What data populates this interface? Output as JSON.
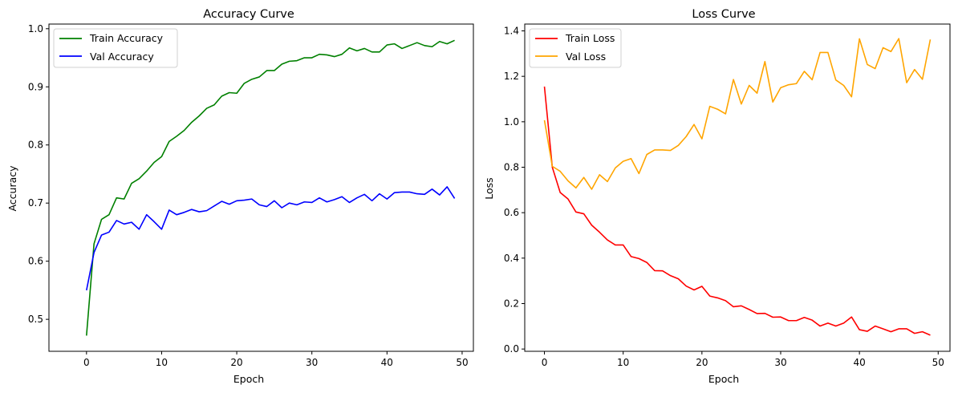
{
  "chart_data": [
    {
      "type": "line",
      "title": "Accuracy Curve",
      "xlabel": "Epoch",
      "ylabel": "Accuracy",
      "xlim": [
        -5,
        51.5
      ],
      "ylim": [
        0.445,
        1.008
      ],
      "xticks": [
        0,
        10,
        20,
        30,
        40,
        50
      ],
      "yticks": [
        0.5,
        0.6,
        0.7,
        0.8,
        0.9,
        1.0
      ],
      "ytick_labels": [
        "0.5",
        "0.6",
        "0.7",
        "0.8",
        "0.9",
        "1.0"
      ],
      "grid": false,
      "legend_position": "top-left",
      "x": [
        0,
        1,
        2,
        3,
        4,
        5,
        6,
        7,
        8,
        9,
        10,
        11,
        12,
        13,
        14,
        15,
        16,
        17,
        18,
        19,
        20,
        21,
        22,
        23,
        24,
        25,
        26,
        27,
        28,
        29,
        30,
        31,
        32,
        33,
        34,
        35,
        36,
        37,
        38,
        39,
        40,
        41,
        42,
        43,
        44,
        45,
        46,
        47,
        48,
        49
      ],
      "series": [
        {
          "name": "Train Accuracy",
          "color": "#008000",
          "values": [
            0.472,
            0.63,
            0.672,
            0.68,
            0.709,
            0.707,
            0.734,
            0.742,
            0.755,
            0.77,
            0.78,
            0.806,
            0.815,
            0.825,
            0.839,
            0.85,
            0.863,
            0.869,
            0.884,
            0.89,
            0.889,
            0.906,
            0.913,
            0.917,
            0.928,
            0.928,
            0.939,
            0.944,
            0.945,
            0.95,
            0.95,
            0.956,
            0.955,
            0.952,
            0.956,
            0.967,
            0.962,
            0.966,
            0.96,
            0.96,
            0.972,
            0.974,
            0.966,
            0.971,
            0.976,
            0.971,
            0.969,
            0.978,
            0.974,
            0.98
          ]
        },
        {
          "name": "Val Accuracy",
          "color": "#0000ff",
          "values": [
            0.55,
            0.615,
            0.645,
            0.65,
            0.67,
            0.664,
            0.667,
            0.655,
            0.68,
            0.668,
            0.655,
            0.688,
            0.68,
            0.684,
            0.689,
            0.685,
            0.687,
            0.695,
            0.703,
            0.698,
            0.704,
            0.705,
            0.707,
            0.697,
            0.694,
            0.704,
            0.692,
            0.7,
            0.697,
            0.702,
            0.701,
            0.709,
            0.702,
            0.706,
            0.711,
            0.701,
            0.709,
            0.715,
            0.704,
            0.716,
            0.707,
            0.718,
            0.719,
            0.719,
            0.716,
            0.715,
            0.724,
            0.714,
            0.728,
            0.708
          ]
        }
      ]
    },
    {
      "type": "line",
      "title": "Loss Curve",
      "xlabel": "Epoch",
      "ylabel": "Loss",
      "xlim": [
        -2.5,
        51.5
      ],
      "ylim": [
        -0.01,
        1.43
      ],
      "xticks": [
        0,
        10,
        20,
        30,
        40,
        50
      ],
      "yticks": [
        0.0,
        0.2,
        0.4,
        0.6,
        0.8,
        1.0,
        1.2,
        1.4
      ],
      "ytick_labels": [
        "0.0",
        "0.2",
        "0.4",
        "0.6",
        "0.8",
        "1.0",
        "1.2",
        "1.4"
      ],
      "grid": false,
      "legend_position": "top-left",
      "x": [
        0,
        1,
        2,
        3,
        4,
        5,
        6,
        7,
        8,
        9,
        10,
        11,
        12,
        13,
        14,
        15,
        16,
        17,
        18,
        19,
        20,
        21,
        22,
        23,
        24,
        25,
        26,
        27,
        28,
        29,
        30,
        31,
        32,
        33,
        34,
        35,
        36,
        37,
        38,
        39,
        40,
        41,
        42,
        43,
        44,
        45,
        46,
        47,
        48,
        49
      ],
      "series": [
        {
          "name": "Train Loss",
          "color": "#ff0000",
          "values": [
            1.155,
            0.8,
            0.689,
            0.66,
            0.603,
            0.595,
            0.545,
            0.514,
            0.48,
            0.458,
            0.458,
            0.407,
            0.398,
            0.381,
            0.345,
            0.344,
            0.323,
            0.309,
            0.277,
            0.26,
            0.276,
            0.233,
            0.225,
            0.213,
            0.186,
            0.19,
            0.174,
            0.156,
            0.157,
            0.14,
            0.141,
            0.125,
            0.125,
            0.139,
            0.127,
            0.101,
            0.114,
            0.101,
            0.114,
            0.141,
            0.085,
            0.078,
            0.101,
            0.089,
            0.076,
            0.089,
            0.089,
            0.069,
            0.076,
            0.061
          ]
        },
        {
          "name": "Val Loss",
          "color": "#ffa500",
          "values": [
            1.007,
            0.804,
            0.782,
            0.74,
            0.709,
            0.755,
            0.703,
            0.767,
            0.737,
            0.797,
            0.826,
            0.838,
            0.772,
            0.856,
            0.876,
            0.876,
            0.874,
            0.896,
            0.935,
            0.988,
            0.925,
            1.068,
            1.055,
            1.035,
            1.186,
            1.078,
            1.16,
            1.126,
            1.265,
            1.087,
            1.15,
            1.163,
            1.168,
            1.222,
            1.185,
            1.305,
            1.305,
            1.184,
            1.16,
            1.11,
            1.365,
            1.252,
            1.234,
            1.326,
            1.309,
            1.366,
            1.172,
            1.23,
            1.187,
            1.362
          ]
        }
      ]
    }
  ]
}
